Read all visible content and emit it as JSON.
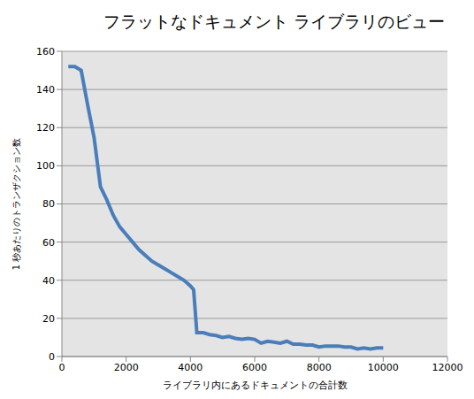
{
  "chart_data": {
    "type": "line",
    "title": "フラットなドキュメント ライブラリのビュー",
    "x_label": "ライブラリ内にあるドキュメントの合計数",
    "y_label": "1 秒あたりのトランザクション数",
    "x": [
      200,
      400,
      600,
      800,
      1000,
      1200,
      1400,
      1600,
      1800,
      2000,
      2200,
      2400,
      2600,
      2800,
      3000,
      3200,
      3400,
      3600,
      3800,
      4000,
      4100,
      4200,
      4400,
      4600,
      4800,
      5000,
      5200,
      5400,
      5600,
      5800,
      6000,
      6200,
      6400,
      6600,
      6800,
      7000,
      7200,
      7400,
      7600,
      7800,
      8000,
      8200,
      8400,
      8600,
      8800,
      9000,
      9200,
      9400,
      9600,
      9800,
      10000
    ],
    "values": [
      152,
      152,
      150,
      132,
      115,
      89,
      82,
      74,
      68,
      64,
      60,
      56,
      53,
      50,
      48,
      46,
      44,
      42,
      40,
      37,
      35,
      12.5,
      12.5,
      11.5,
      11,
      10,
      10.5,
      9.5,
      9,
      9.5,
      9,
      7,
      8,
      7.5,
      7,
      8,
      6.5,
      6.5,
      6,
      6,
      5,
      5.5,
      5.5,
      5.5,
      5,
      5,
      4,
      4.5,
      4,
      4.5,
      4.5
    ],
    "color": "#4a7ebb",
    "xlim": [
      0,
      12000
    ],
    "xticks": [
      0,
      2000,
      4000,
      6000,
      8000,
      10000,
      12000
    ],
    "ylim": [
      0,
      160
    ],
    "yticks": [
      0,
      20,
      40,
      60,
      80,
      100,
      120,
      140,
      160
    ],
    "grid": true
  }
}
